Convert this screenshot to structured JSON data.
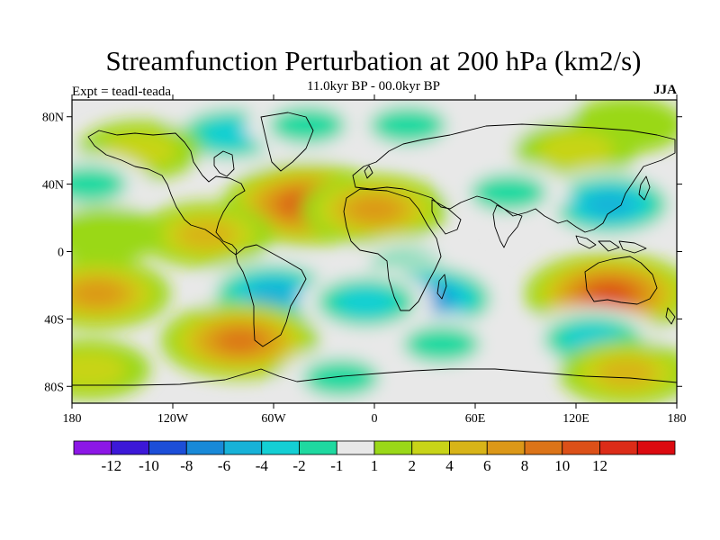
{
  "title": "Streamfunction Perturbation at 200 hPa (km2/s)",
  "subtitle": "11.0kyr BP - 00.0kyr BP",
  "experiment_label": "Expt = teadl-teada",
  "season": "JJA",
  "axes": {
    "lat_ticks": [
      {
        "value": 80,
        "label": "80N"
      },
      {
        "value": 40,
        "label": "40N"
      },
      {
        "value": 0,
        "label": "0"
      },
      {
        "value": -40,
        "label": "40S"
      },
      {
        "value": -80,
        "label": "80S"
      }
    ],
    "lon_ticks": [
      {
        "value": -180,
        "label": "180"
      },
      {
        "value": -120,
        "label": "120W"
      },
      {
        "value": -60,
        "label": "60W"
      },
      {
        "value": 0,
        "label": "0"
      },
      {
        "value": 60,
        "label": "60E"
      },
      {
        "value": 120,
        "label": "120E"
      },
      {
        "value": 180,
        "label": "180"
      }
    ]
  },
  "colorbar": {
    "colors": [
      "#8c17e6",
      "#3c18d8",
      "#1c4ed8",
      "#1889d8",
      "#17b2d8",
      "#14cfd4",
      "#1fd9a0",
      "#e8e8e8",
      "#9ad818",
      "#c8d418",
      "#d8b418",
      "#dc9818",
      "#dc7418",
      "#dc5018",
      "#dc2c18",
      "#dc0a10"
    ],
    "labels": [
      "-12",
      "-10",
      "-8",
      "-6",
      "-4",
      "-2",
      "-1",
      "1",
      "2",
      "4",
      "6",
      "8",
      "10",
      "12"
    ]
  },
  "field": {
    "background_color": "#e8e8e8",
    "anomalies": [
      {
        "lon": -85,
        "lat": 70,
        "value": -4
      },
      {
        "lon": -40,
        "lat": 75,
        "value": -2
      },
      {
        "lon": 20,
        "lat": 75,
        "value": -2
      },
      {
        "lon": 90,
        "lat": 75,
        "value": -1
      },
      {
        "lon": 150,
        "lat": 75,
        "value": 1
      },
      {
        "lon": -140,
        "lat": 60,
        "value": 2
      },
      {
        "lon": 120,
        "lat": 60,
        "value": 2
      },
      {
        "lon": -40,
        "lat": 28,
        "value": 10
      },
      {
        "lon": 0,
        "lat": 25,
        "value": 6
      },
      {
        "lon": 140,
        "lat": 28,
        "value": -6
      },
      {
        "lon": 80,
        "lat": 35,
        "value": -2
      },
      {
        "lon": -170,
        "lat": 40,
        "value": -2
      },
      {
        "lon": -100,
        "lat": 10,
        "value": 4
      },
      {
        "lon": -160,
        "lat": 10,
        "value": 1
      },
      {
        "lon": 20,
        "lat": -10,
        "value": -2
      },
      {
        "lon": -60,
        "lat": -25,
        "value": -6
      },
      {
        "lon": 30,
        "lat": -28,
        "value": -8
      },
      {
        "lon": -5,
        "lat": -30,
        "value": -4
      },
      {
        "lon": 140,
        "lat": -25,
        "value": 10
      },
      {
        "lon": -165,
        "lat": -25,
        "value": 6
      },
      {
        "lon": -80,
        "lat": -53,
        "value": 8
      },
      {
        "lon": 130,
        "lat": -52,
        "value": -4
      },
      {
        "lon": 40,
        "lat": -55,
        "value": -2
      },
      {
        "lon": -20,
        "lat": -75,
        "value": -2
      },
      {
        "lon": 150,
        "lat": -72,
        "value": 4
      },
      {
        "lon": -170,
        "lat": -70,
        "value": 2
      }
    ]
  }
}
